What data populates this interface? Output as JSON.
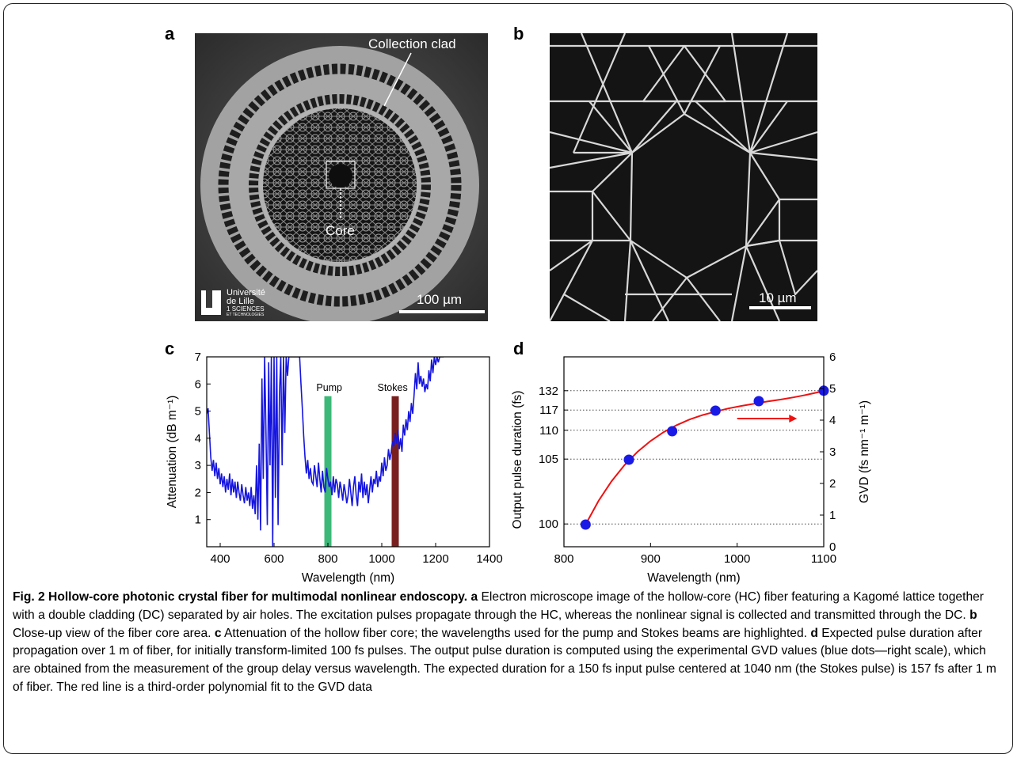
{
  "panels": {
    "a": {
      "label": "a",
      "annotation_clad": "Collection clad",
      "annotation_core": "Core",
      "scalebar": "100 µm",
      "logo_lines": [
        "Université",
        "de Lille",
        "1",
        "SCIENCES",
        "ET TECHNOLOGIES"
      ]
    },
    "b": {
      "label": "b",
      "scalebar": "10 µm"
    },
    "c": {
      "label": "c"
    },
    "d": {
      "label": "d"
    }
  },
  "chart_data": [
    {
      "type": "line",
      "panel": "c",
      "xlabel": "Wavelength (nm)",
      "ylabel": "Attenuation (dB m⁻¹)",
      "xlim": [
        350,
        1400
      ],
      "ylim": [
        0,
        7
      ],
      "xticks": [
        400,
        600,
        800,
        1000,
        1200,
        1400
      ],
      "yticks": [
        1,
        2,
        3,
        4,
        5,
        6,
        7
      ],
      "annotations": [
        "Pump",
        "Stokes"
      ],
      "bands": [
        {
          "name": "Pump",
          "center": 800,
          "color": "#3cb878"
        },
        {
          "name": "Stokes",
          "center": 1050,
          "color": "#7a1f1f"
        }
      ],
      "series_color": "#1515e0",
      "series": [
        {
          "x": [
            350,
            355,
            360,
            365,
            370,
            375,
            380,
            385,
            390,
            395,
            400,
            405,
            410,
            415,
            420,
            425,
            430,
            435,
            440,
            445,
            450,
            455,
            460,
            465,
            470,
            475,
            480,
            485,
            490,
            495,
            500,
            505,
            510,
            515,
            520,
            525,
            530,
            535,
            540,
            545,
            550,
            555,
            560,
            565,
            570,
            575,
            580,
            585,
            590,
            595,
            600,
            605,
            610,
            615,
            620,
            625,
            630,
            635,
            640,
            645,
            650,
            655,
            660,
            665,
            670,
            675,
            680,
            685,
            690,
            695,
            700,
            705,
            710,
            715,
            720,
            725,
            730,
            735,
            740,
            745,
            750,
            755,
            760,
            765,
            770,
            775,
            780,
            785,
            790,
            795,
            800,
            805,
            810,
            815,
            820,
            825,
            830,
            835,
            840,
            845,
            850,
            855,
            860,
            865,
            870,
            875,
            880,
            885,
            890,
            895,
            900,
            905,
            910,
            915,
            920,
            925,
            930,
            935,
            940,
            945,
            950,
            955,
            960,
            965,
            970,
            975,
            980,
            985,
            990,
            995,
            1000,
            1005,
            1010,
            1015,
            1020,
            1025,
            1030,
            1035,
            1040,
            1045,
            1050,
            1055,
            1060,
            1065,
            1070,
            1075,
            1080,
            1085,
            1090,
            1095,
            1100,
            1105,
            1110,
            1115,
            1120,
            1125,
            1130,
            1135,
            1140,
            1145,
            1150,
            1155,
            1160,
            1165,
            1170,
            1175,
            1180,
            1185,
            1190,
            1195,
            1200,
            1205,
            1210,
            1215,
            1220,
            1225,
            1230
          ],
          "y": [
            4.9,
            5.1,
            4.2,
            3.3,
            2.8,
            3.2,
            2.6,
            3.1,
            2.5,
            2.9,
            2.3,
            2.7,
            2.2,
            2.6,
            2.0,
            2.5,
            2.1,
            2.7,
            1.9,
            2.5,
            2.0,
            2.4,
            1.8,
            2.4,
            2.0,
            1.7,
            2.3,
            1.9,
            1.6,
            2.2,
            1.7,
            2.0,
            1.5,
            2.2,
            1.4,
            1.9,
            1.2,
            3.0,
            1.0,
            3.8,
            0.6,
            6.2,
            2.5,
            7.0,
            4.2,
            0.8,
            6.8,
            3.0,
            7.0,
            0.0,
            7.0,
            1.8,
            7.0,
            0.8,
            5.6,
            7.0,
            3.0,
            7.0,
            4.2,
            7.0,
            6.3,
            7.0,
            7.0,
            7.0,
            7.0,
            7.0,
            7.0,
            7.0,
            7.0,
            7.0,
            6.0,
            5.1,
            4.1,
            3.3,
            2.7,
            3.2,
            2.5,
            2.9,
            2.4,
            2.3,
            3.0,
            2.6,
            2.2,
            3.1,
            2.5,
            2.0,
            2.8,
            2.2,
            2.0,
            2.9,
            2.5,
            2.2,
            2.4,
            1.9,
            2.6,
            2.0,
            2.5,
            2.3,
            1.8,
            2.4,
            2.1,
            1.7,
            2.3,
            2.0,
            1.6,
            1.9,
            2.5,
            2.0,
            1.5,
            2.2,
            2.6,
            1.9,
            1.5,
            2.4,
            2.0,
            2.7,
            1.8,
            2.4,
            1.9,
            2.3,
            1.6,
            2.1,
            2.6,
            2.0,
            2.5,
            2.3,
            2.8,
            2.2,
            2.6,
            2.4,
            3.1,
            2.6,
            3.3,
            2.8,
            3.0,
            3.6,
            3.2,
            3.5,
            3.9,
            3.7,
            4.2,
            3.8,
            4.3,
            3.6,
            4.0,
            3.5,
            4.5,
            4.1,
            4.7,
            4.3,
            5.0,
            4.6,
            5.3,
            4.9,
            5.6,
            6.4,
            5.8,
            6.8,
            6.0,
            6.3,
            5.9,
            6.2,
            5.7,
            6.0,
            5.8,
            6.5,
            6.1,
            6.9,
            6.4,
            7.0,
            6.7,
            7.0,
            6.8,
            7.0,
            7.0,
            7.0,
            7.0
          ]
        }
      ]
    },
    {
      "type": "scatter",
      "panel": "d",
      "xlabel": "Wavelength (nm)",
      "ylabel": "Output pulse duration (fs)",
      "ylabel_right": "GVD (fs nm⁻¹ m⁻¹)",
      "xlim": [
        800,
        1100
      ],
      "ylim_right": [
        0,
        6
      ],
      "xticks": [
        800,
        900,
        1000,
        1100
      ],
      "yticks_right": [
        0,
        1,
        2,
        3,
        4,
        5,
        6
      ],
      "left_tick_labels": [
        {
          "label": "132",
          "gvd": 4.93
        },
        {
          "label": "117",
          "gvd": 4.32
        },
        {
          "label": "110",
          "gvd": 3.68
        },
        {
          "label": "105",
          "gvd": 2.77
        },
        {
          "label": "100",
          "gvd": 0.72
        }
      ],
      "points_color": "#1a1ae6",
      "fit_color": "#ee1111",
      "series": [
        {
          "x": [
            825,
            875,
            925,
            975,
            1025,
            1100
          ],
          "y": [
            0.7,
            2.75,
            3.65,
            4.3,
            4.6,
            4.93
          ]
        }
      ],
      "fit_curve": {
        "x": [
          825,
          840,
          855,
          870,
          885,
          900,
          915,
          930,
          945,
          960,
          975,
          990,
          1005,
          1020,
          1035,
          1050,
          1065,
          1080,
          1095,
          1100
        ],
        "y": [
          0.7,
          1.45,
          2.07,
          2.58,
          3.0,
          3.34,
          3.62,
          3.84,
          4.02,
          4.16,
          4.27,
          4.37,
          4.45,
          4.52,
          4.59,
          4.65,
          4.72,
          4.8,
          4.89,
          4.92
        ]
      }
    }
  ],
  "caption": {
    "title": "Fig. 2 Hollow-core photonic crystal fiber for multimodal nonlinear endoscopy.",
    "a_label": "a",
    "a_text": "Electron microscope image of the hollow-core (HC) fiber featuring a Kagomé lattice together with a double cladding (DC) separated by air holes. The excitation pulses propagate through the HC, whereas the nonlinear signal is collected and transmitted through the DC.",
    "b_label": "b",
    "b_text": "Close-up view of the fiber core area.",
    "c_label": "c",
    "c_text": "Attenuation of the hollow fiber core; the wavelengths used for the pump and Stokes beams are highlighted.",
    "d_label": "d",
    "d_text": "Expected pulse duration after propagation over 1 m of fiber, for initially transform-limited 100 fs pulses. The output pulse duration is computed using the  experimental GVD values (blue dots—right scale), which are obtained from the measurement of the group delay versus wavelength. The expected duration for a 150 fs input pulse centered at 1040 nm (the Stokes pulse) is 157 fs after 1 m of fiber. The red line is a third-order polynomial fit to the GVD data"
  }
}
